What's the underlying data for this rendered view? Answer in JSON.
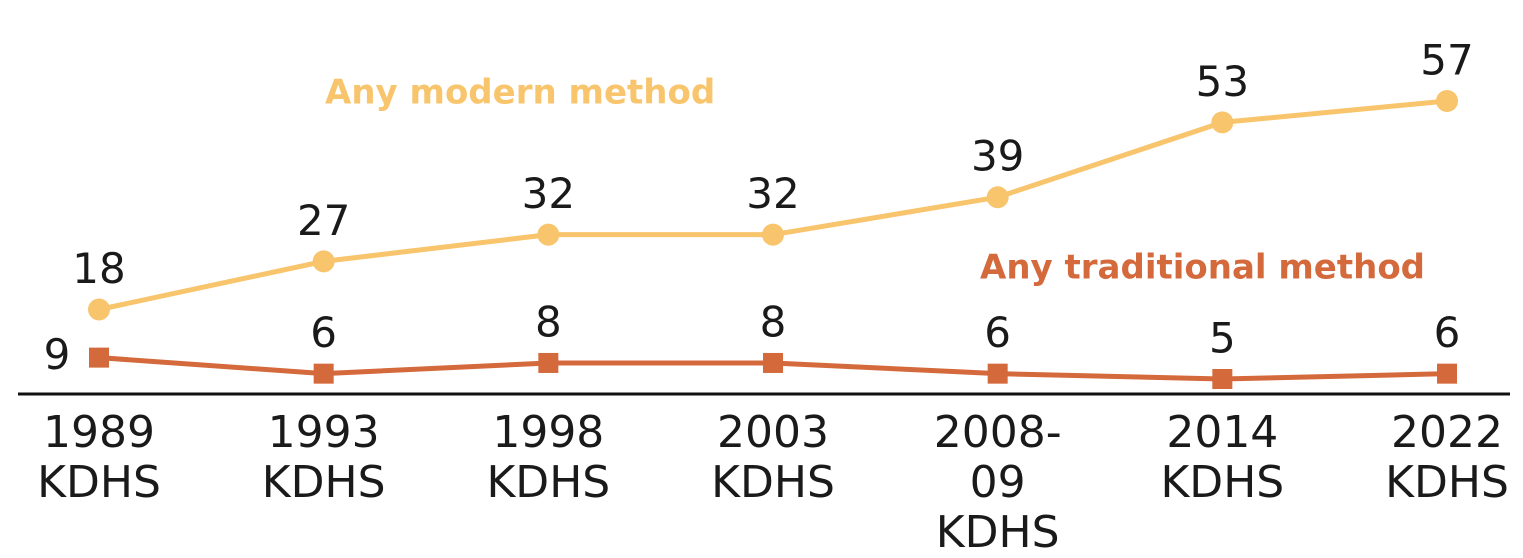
{
  "chart_data": {
    "type": "line",
    "categories": [
      "1989 KDHS",
      "1993 KDHS",
      "1998 KDHS",
      "2003 KDHS",
      "2008-09 KDHS",
      "2014 KDHS",
      "2022 KDHS"
    ],
    "series": [
      {
        "name": "Any modern method",
        "color": "#f8c46c",
        "marker": "circle",
        "values": [
          18,
          27,
          32,
          32,
          39,
          53,
          57
        ]
      },
      {
        "name": "Any traditional method",
        "color": "#d4693c",
        "marker": "square",
        "values": [
          9,
          6,
          8,
          8,
          6,
          5,
          6
        ]
      }
    ]
  }
}
